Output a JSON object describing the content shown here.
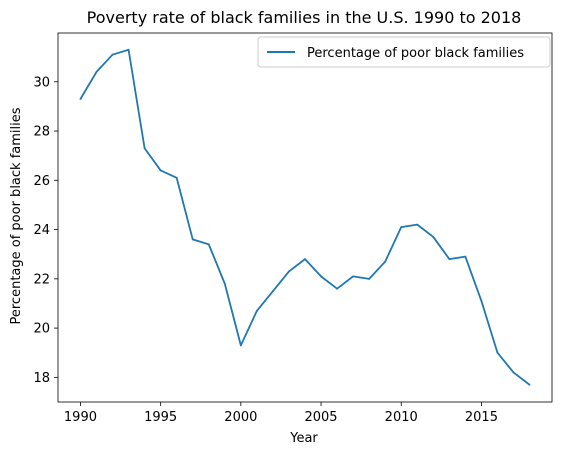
{
  "chart_data": {
    "type": "line",
    "title": "Poverty rate of black families in the U.S. 1990 to 2018",
    "xlabel": "Year",
    "ylabel": "Percentage of poor black families",
    "xlim": [
      1988.6,
      2019.4
    ],
    "ylim": [
      17.0,
      31.98
    ],
    "xticks": [
      1990,
      1995,
      2000,
      2005,
      2010,
      2015
    ],
    "yticks": [
      18,
      20,
      22,
      24,
      26,
      28,
      30
    ],
    "grid": false,
    "legend_position": "top-right",
    "series": [
      {
        "name": "Percentage of poor black families",
        "color": "#1f77b4",
        "x": [
          1990,
          1991,
          1992,
          1993,
          1994,
          1995,
          1996,
          1997,
          1998,
          1999,
          2000,
          2001,
          2002,
          2003,
          2004,
          2005,
          2006,
          2007,
          2008,
          2009,
          2010,
          2011,
          2012,
          2013,
          2014,
          2015,
          2016,
          2017,
          2018
        ],
        "y": [
          29.3,
          30.4,
          31.1,
          31.3,
          27.3,
          26.4,
          26.1,
          23.6,
          23.4,
          21.8,
          19.3,
          20.7,
          21.5,
          22.3,
          22.8,
          22.1,
          21.6,
          22.1,
          22.0,
          22.7,
          24.1,
          24.2,
          23.7,
          22.8,
          22.9,
          21.1,
          19.0,
          18.2,
          17.7
        ]
      }
    ]
  }
}
